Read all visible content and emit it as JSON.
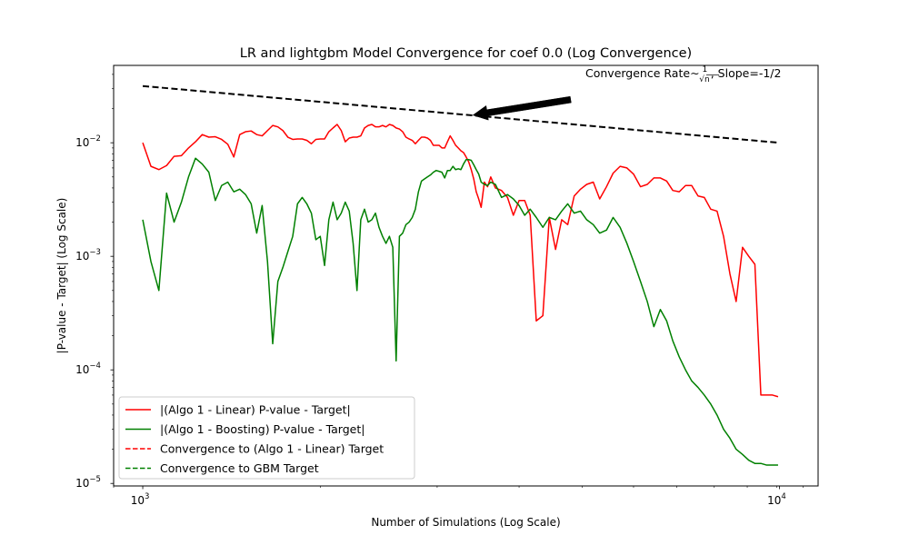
{
  "chart_data": {
    "type": "line",
    "title": "LR and lightgbm Model Convergence for coef 0.0 (Log Convergence)",
    "xlabel": "Number of Simulations (Log Scale)",
    "ylabel": "|P-value - Target| (Log Scale)",
    "x_scale": "log",
    "y_scale": "log",
    "xlim": [
      900,
      11500
    ],
    "ylim": [
      9.5e-06,
      0.048
    ],
    "grid": false,
    "legend_position": "lower-left",
    "x_ticks": [
      {
        "value": 1000,
        "base": "10",
        "exp": "3"
      },
      {
        "value": 10000,
        "base": "10",
        "exp": "4"
      }
    ],
    "y_ticks": [
      {
        "value": 1e-05,
        "base": "10",
        "exp": "−5"
      },
      {
        "value": 0.0001,
        "base": "10",
        "exp": "−4"
      },
      {
        "value": 0.001,
        "base": "10",
        "exp": "−3"
      },
      {
        "value": 0.01,
        "base": "10",
        "exp": "−2"
      }
    ],
    "annotation": {
      "text_prefix": "Convergence Rate",
      "text_tilde": "∼",
      "frac_num": "1",
      "frac_sym": "√n",
      "text_suffix": ", Slope=-1/2",
      "arrow_tail": [
        4700,
        0.024
      ],
      "arrow_head": [
        3300,
        0.0175
      ]
    },
    "reference_line": {
      "name": "Convergence Rate",
      "color": "#000000",
      "style": "dashed",
      "x": [
        1000,
        10000
      ],
      "y": [
        0.0316,
        0.01
      ]
    },
    "series": [
      {
        "name": "|(Algo 1 - Linear) P-value - Target|",
        "color": "#ff0000",
        "style": "solid",
        "x": [
          1000,
          1030,
          1060,
          1090,
          1120,
          1150,
          1180,
          1210,
          1240,
          1270,
          1300,
          1330,
          1360,
          1390,
          1420,
          1450,
          1480,
          1510,
          1540,
          1570,
          1600,
          1630,
          1660,
          1690,
          1720,
          1750,
          1780,
          1810,
          1840,
          1870,
          1900,
          1930,
          1960,
          1990,
          2020,
          2050,
          2080,
          2110,
          2140,
          2170,
          2200,
          2230,
          2260,
          2290,
          2320,
          2350,
          2380,
          2410,
          2440,
          2470,
          2500,
          2530,
          2560,
          2590,
          2620,
          2650,
          2680,
          2710,
          2740,
          2770,
          2800,
          2830,
          2860,
          2890,
          2920,
          2950,
          2980,
          3010,
          3040,
          3070,
          3100,
          3130,
          3160,
          3190,
          3220,
          3250,
          3280,
          3310,
          3340,
          3370,
          3400,
          3440,
          3480,
          3520,
          3580,
          3660,
          3740,
          3820,
          3900,
          3980,
          4060,
          4150,
          4250,
          4350,
          4450,
          4550,
          4650,
          4760,
          4870,
          4980,
          5100,
          5220,
          5350,
          5480,
          5620,
          5760,
          5900,
          6050,
          6200,
          6350,
          6500,
          6650,
          6800,
          6960,
          7120,
          7280,
          7450,
          7620,
          7800,
          7980,
          8170,
          8360,
          8550,
          8750,
          8950,
          9150,
          9350,
          9550,
          9750,
          9950
        ],
        "y": [
          0.01,
          0.0062,
          0.0058,
          0.0063,
          0.0076,
          0.0077,
          0.009,
          0.0102,
          0.0118,
          0.0112,
          0.0113,
          0.0107,
          0.0097,
          0.0075,
          0.0118,
          0.0125,
          0.0127,
          0.0118,
          0.0115,
          0.0128,
          0.0142,
          0.0138,
          0.0128,
          0.0112,
          0.0107,
          0.0108,
          0.0108,
          0.0105,
          0.0098,
          0.0107,
          0.0108,
          0.0108,
          0.0125,
          0.0135,
          0.0145,
          0.0128,
          0.0102,
          0.011,
          0.0112,
          0.0112,
          0.0115,
          0.0135,
          0.0142,
          0.0145,
          0.0138,
          0.0138,
          0.0142,
          0.0138,
          0.0145,
          0.0142,
          0.0135,
          0.0132,
          0.0125,
          0.0112,
          0.0108,
          0.0105,
          0.0098,
          0.0105,
          0.0112,
          0.0112,
          0.011,
          0.0105,
          0.0095,
          0.0095,
          0.0095,
          0.009,
          0.009,
          0.0102,
          0.0115,
          0.0105,
          0.0095,
          0.009,
          0.0085,
          0.0082,
          0.0075,
          0.0068,
          0.0058,
          0.0048,
          0.0037,
          0.0032,
          0.0027,
          0.0045,
          0.0041,
          0.005,
          0.004,
          0.0038,
          0.0033,
          0.0023,
          0.0031,
          0.0031,
          0.0023,
          0.00027,
          0.0003,
          0.0022,
          0.00115,
          0.0021,
          0.0019,
          0.0034,
          0.0039,
          0.0043,
          0.0045,
          0.0032,
          0.0041,
          0.0054,
          0.0062,
          0.006,
          0.0053,
          0.0041,
          0.0043,
          0.0049,
          0.0049,
          0.0046,
          0.0038,
          0.0037,
          0.0042,
          0.0042,
          0.0034,
          0.0033,
          0.0026,
          0.0025,
          0.0015,
          0.0007,
          0.0004,
          0.0012,
          0.001,
          0.00085,
          6e-05,
          6e-05,
          6e-05,
          5.8e-05
        ],
        "note": "trailing points approximate"
      },
      {
        "name": "|(Algo 1 - Boosting) P-value - Target|",
        "color": "#008000",
        "style": "solid",
        "x": [
          1000,
          1030,
          1060,
          1090,
          1120,
          1150,
          1180,
          1210,
          1240,
          1270,
          1300,
          1330,
          1360,
          1390,
          1420,
          1450,
          1480,
          1510,
          1540,
          1570,
          1600,
          1630,
          1660,
          1690,
          1720,
          1750,
          1780,
          1810,
          1840,
          1870,
          1900,
          1930,
          1960,
          1990,
          2020,
          2050,
          2080,
          2110,
          2140,
          2170,
          2200,
          2230,
          2260,
          2290,
          2320,
          2350,
          2380,
          2410,
          2440,
          2470,
          2500,
          2530,
          2560,
          2590,
          2620,
          2650,
          2680,
          2710,
          2740,
          2770,
          2800,
          2830,
          2860,
          2890,
          2920,
          2950,
          2980,
          3010,
          3040,
          3070,
          3100,
          3130,
          3160,
          3190,
          3220,
          3250,
          3280,
          3310,
          3340,
          3370,
          3400,
          3440,
          3480,
          3520,
          3580,
          3660,
          3740,
          3820,
          3900,
          3980,
          4060,
          4150,
          4250,
          4350,
          4450,
          4550,
          4650,
          4760,
          4870,
          4980,
          5100,
          5220,
          5350,
          5480,
          5620,
          5760,
          5900,
          6050,
          6200,
          6350,
          6500,
          6650,
          6800,
          6960,
          7120,
          7280,
          7450,
          7620,
          7800,
          7980,
          8170,
          8360,
          8550,
          8750,
          8950,
          9150,
          9350,
          9550,
          9750,
          9950
        ],
        "y": [
          0.0021,
          0.0009,
          0.0005,
          0.0036,
          0.002,
          0.003,
          0.005,
          0.0073,
          0.0065,
          0.0055,
          0.0031,
          0.0042,
          0.0045,
          0.0037,
          0.0039,
          0.0035,
          0.0029,
          0.0016,
          0.0028,
          0.0009,
          0.00017,
          0.0006,
          0.0008,
          0.0011,
          0.0015,
          0.0029,
          0.0033,
          0.0029,
          0.0024,
          0.0014,
          0.0015,
          0.00083,
          0.0021,
          0.003,
          0.0021,
          0.0024,
          0.003,
          0.0025,
          0.0013,
          0.0005,
          0.0021,
          0.0026,
          0.002,
          0.0021,
          0.0024,
          0.0018,
          0.0015,
          0.0013,
          0.0015,
          0.0012,
          0.00012,
          0.0015,
          0.0016,
          0.0019,
          0.002,
          0.0022,
          0.0026,
          0.0037,
          0.0046,
          0.0048,
          0.005,
          0.0052,
          0.0055,
          0.0057,
          0.0056,
          0.0055,
          0.0049,
          0.0057,
          0.0057,
          0.0062,
          0.0058,
          0.0059,
          0.0058,
          0.0065,
          0.0071,
          0.0071,
          0.007,
          0.0064,
          0.0058,
          0.0053,
          0.0045,
          0.0043,
          0.0042,
          0.0045,
          0.0043,
          0.0033,
          0.0035,
          0.0032,
          0.0028,
          0.0023,
          0.0026,
          0.0022,
          0.0018,
          0.0022,
          0.0021,
          0.0025,
          0.0029,
          0.0024,
          0.0025,
          0.0021,
          0.0019,
          0.0016,
          0.0017,
          0.0022,
          0.0018,
          0.0013,
          0.0009,
          0.0006,
          0.0004,
          0.00024,
          0.00034,
          0.00027,
          0.00018,
          0.00013,
          0.0001,
          8e-05,
          7e-05,
          6e-05,
          5e-05,
          4e-05,
          3e-05,
          2.5e-05,
          2e-05,
          1.8e-05,
          1.6e-05,
          1.5e-05,
          1.5e-05,
          1.45e-05,
          1.45e-05,
          1.45e-05
        ],
        "note": "trailing points approximate"
      }
    ],
    "legend": [
      {
        "label": "|(Algo 1 - Linear) P-value - Target|",
        "color": "#ff0000",
        "style": "solid"
      },
      {
        "label": "|(Algo 1 - Boosting) P-value - Target|",
        "color": "#008000",
        "style": "solid"
      },
      {
        "label": "Convergence to (Algo 1 - Linear) Target",
        "color": "#ff0000",
        "style": "dashed"
      },
      {
        "label": "Convergence to GBM Target",
        "color": "#008000",
        "style": "dashed"
      }
    ]
  }
}
